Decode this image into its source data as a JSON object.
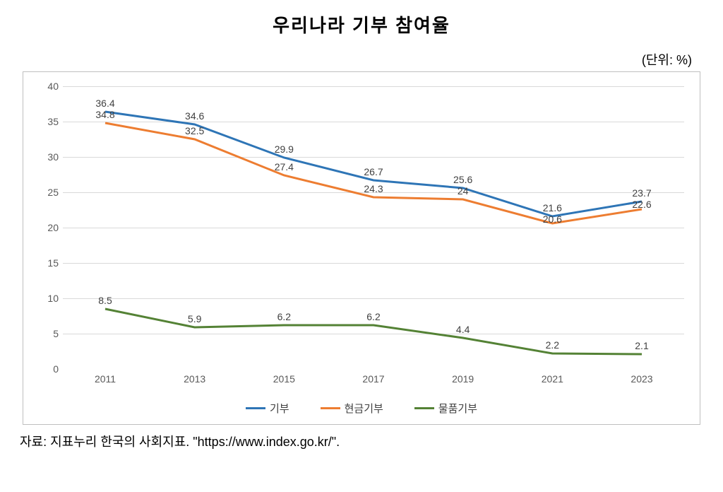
{
  "title": "우리나라 기부 참여율",
  "unit_label": "(단위:  %)",
  "source": "자료: 지표누리 한국의 사회지표. \"https://www.index.go.kr/\".",
  "chart": {
    "type": "line",
    "categories": [
      "2011",
      "2013",
      "2015",
      "2017",
      "2019",
      "2021",
      "2023"
    ],
    "ylim": [
      0,
      40
    ],
    "ytick_step": 5,
    "yticks": [
      0,
      5,
      10,
      15,
      20,
      25,
      30,
      35,
      40
    ],
    "grid_color": "#d9d9d9",
    "border_color": "#bfbfbf",
    "background_color": "#ffffff",
    "axis_text_color": "#595959",
    "label_text_color": "#404040",
    "line_width": 3,
    "label_fontsize": 14,
    "tick_fontsize": 14,
    "series": [
      {
        "name": "기부",
        "color": "#2e75b6",
        "values": [
          36.4,
          34.6,
          29.9,
          26.7,
          25.6,
          21.6,
          23.7
        ],
        "labels": [
          "36.4",
          "34.6",
          "29.9",
          "26.7",
          "25.6",
          "21.6",
          "23.7"
        ]
      },
      {
        "name": "현금기부",
        "color": "#ed7d31",
        "values": [
          34.8,
          32.5,
          27.4,
          24.3,
          24.0,
          20.6,
          22.6
        ],
        "labels": [
          "34.8",
          "32.5",
          "27.4",
          "24.3",
          "24",
          "20.6",
          "22.6"
        ]
      },
      {
        "name": "물품기부",
        "color": "#548235",
        "values": [
          8.5,
          5.9,
          6.2,
          6.2,
          4.4,
          2.2,
          2.1
        ],
        "labels": [
          "8.5",
          "5.9",
          "6.2",
          "6.2",
          "4.4",
          "2.2",
          "2.1"
        ]
      }
    ],
    "legend_items": [
      "기부",
      "현금기부",
      "물품기부"
    ]
  }
}
